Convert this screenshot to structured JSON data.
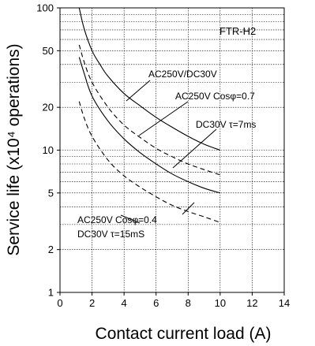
{
  "chart_data": {
    "type": "line",
    "title": "",
    "model_label": "FTR-H2",
    "xlabel": "Contact current load (A)",
    "ylabel": "Service life (x10⁴ operations)",
    "xlim": [
      0,
      14
    ],
    "ylim": [
      1,
      100
    ],
    "y_scale": "log",
    "grid": true,
    "x_ticks": [
      "0",
      "2",
      "4",
      "6",
      "8",
      "10",
      "12",
      "14"
    ],
    "y_ticks": [
      {
        "value": 1,
        "label": "1"
      },
      {
        "value": 2,
        "label": "2"
      },
      {
        "value": 5,
        "label": "5"
      },
      {
        "value": 10,
        "label": "10"
      },
      {
        "value": 20,
        "label": "20"
      },
      {
        "value": 50,
        "label": "50"
      },
      {
        "value": 100,
        "label": "100"
      }
    ],
    "series": [
      {
        "name": "AC250V/DC30V",
        "style": "solid",
        "x": [
          1.2,
          1.5,
          2,
          2.5,
          3,
          4,
          5,
          6,
          7,
          8,
          9,
          10
        ],
        "y": [
          100,
          72,
          50,
          40,
          33,
          25,
          20.5,
          17,
          14.5,
          12.5,
          11,
          10
        ]
      },
      {
        "name": "AC250V Cosφ=0.7",
        "style": "dashed",
        "x": [
          1.2,
          1.5,
          2,
          3,
          4,
          5,
          6,
          7,
          8,
          9,
          10
        ],
        "y": [
          55,
          42,
          30,
          20,
          15,
          12.3,
          10.3,
          9,
          8,
          7.3,
          6.7
        ]
      },
      {
        "name": "DC30V τ=7ms",
        "style": "solid",
        "x": [
          1.2,
          1.5,
          2,
          3,
          4,
          5,
          6,
          7,
          8,
          9,
          10
        ],
        "y": [
          45,
          35,
          24,
          16,
          12,
          9.6,
          8,
          6.8,
          6,
          5.4,
          5
        ]
      },
      {
        "name": "AC250V Cosφ=0.4 / DC30V τ=15mS",
        "style": "dashed",
        "x": [
          1.2,
          1.5,
          2,
          3,
          4,
          5,
          6,
          7,
          8,
          9,
          10
        ],
        "y": [
          22,
          17,
          12.5,
          8.5,
          6.6,
          5.5,
          4.7,
          4.1,
          3.7,
          3.4,
          3.1
        ]
      }
    ],
    "annotations": [
      {
        "text": "AC250V/DC30V"
      },
      {
        "text": "AC250V Cosφ=0.7"
      },
      {
        "text": "DC30V τ=7ms"
      },
      {
        "text": "AC250V Cosφ=0.4"
      },
      {
        "text": "DC30V τ=15mS"
      }
    ]
  }
}
